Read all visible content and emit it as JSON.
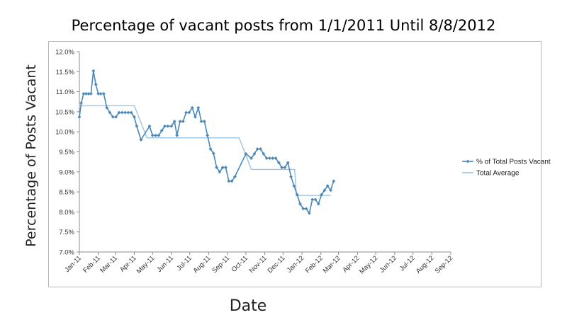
{
  "chart_data": {
    "type": "line",
    "title": "Percentage of vacant posts from 1/1/2011 Until 8/8/2012",
    "xlabel": "Date",
    "ylabel": "Percentage of Posts Vacant",
    "xlim": [
      "2011-01-01",
      "2012-09-01"
    ],
    "ylim": [
      7.0,
      12.0
    ],
    "y_ticks": [
      "7.0%",
      "7.5%",
      "8.0%",
      "8.5%",
      "9.0%",
      "9.5%",
      "10.0%",
      "10.5%",
      "11.0%",
      "11.5%",
      "12.0%"
    ],
    "x_ticks": [
      {
        "date": "2011-01-01",
        "label": "Jan-11"
      },
      {
        "date": "2011-02-01",
        "label": "Feb-11"
      },
      {
        "date": "2011-03-01",
        "label": "Mar-11"
      },
      {
        "date": "2011-04-01",
        "label": "Apr-11"
      },
      {
        "date": "2011-05-01",
        "label": "May-11"
      },
      {
        "date": "2011-06-01",
        "label": "Jun-11"
      },
      {
        "date": "2011-07-01",
        "label": "Jul-11"
      },
      {
        "date": "2011-08-01",
        "label": "Aug-11"
      },
      {
        "date": "2011-09-01",
        "label": "Sep-11"
      },
      {
        "date": "2011-10-01",
        "label": "Oct-11"
      },
      {
        "date": "2011-11-01",
        "label": "Nov-11"
      },
      {
        "date": "2011-12-01",
        "label": "Dec-11"
      },
      {
        "date": "2012-01-01",
        "label": "Jan-12"
      },
      {
        "date": "2012-02-01",
        "label": "Feb-12"
      },
      {
        "date": "2012-03-01",
        "label": "Mar-12"
      },
      {
        "date": "2012-04-01",
        "label": "Apr-12"
      },
      {
        "date": "2012-05-01",
        "label": "May-12"
      },
      {
        "date": "2012-06-01",
        "label": "Jun-12"
      },
      {
        "date": "2012-07-01",
        "label": "Jul-12"
      },
      {
        "date": "2012-08-01",
        "label": "Aug-12"
      },
      {
        "date": "2012-09-01",
        "label": "Sep-12"
      }
    ],
    "grid": false,
    "legend_position": "right",
    "series": [
      {
        "name": "% of Total Posts Vacant",
        "color": "#4a88b8",
        "markers": true,
        "points": [
          [
            "2011-01-01",
            10.37
          ],
          [
            "2011-01-04",
            10.72
          ],
          [
            "2011-01-08",
            10.95
          ],
          [
            "2011-01-12",
            10.95
          ],
          [
            "2011-01-16",
            10.95
          ],
          [
            "2011-01-20",
            10.95
          ],
          [
            "2011-01-24",
            11.52
          ],
          [
            "2011-01-28",
            11.18
          ],
          [
            "2011-02-01",
            10.95
          ],
          [
            "2011-02-05",
            10.95
          ],
          [
            "2011-02-10",
            10.95
          ],
          [
            "2011-02-15",
            10.6
          ],
          [
            "2011-02-20",
            10.48
          ],
          [
            "2011-02-25",
            10.37
          ],
          [
            "2011-03-02",
            10.37
          ],
          [
            "2011-03-07",
            10.48
          ],
          [
            "2011-03-12",
            10.48
          ],
          [
            "2011-03-17",
            10.48
          ],
          [
            "2011-03-22",
            10.48
          ],
          [
            "2011-03-27",
            10.48
          ],
          [
            "2011-04-01",
            10.37
          ],
          [
            "2011-04-05",
            10.14
          ],
          [
            "2011-04-12",
            9.8
          ],
          [
            "2011-04-26",
            10.14
          ],
          [
            "2011-05-01",
            9.91
          ],
          [
            "2011-05-06",
            9.91
          ],
          [
            "2011-05-11",
            9.91
          ],
          [
            "2011-05-16",
            10.03
          ],
          [
            "2011-05-21",
            10.14
          ],
          [
            "2011-05-26",
            10.14
          ],
          [
            "2011-06-01",
            10.14
          ],
          [
            "2011-06-06",
            10.26
          ],
          [
            "2011-06-10",
            9.91
          ],
          [
            "2011-06-15",
            10.26
          ],
          [
            "2011-06-20",
            10.26
          ],
          [
            "2011-06-25",
            10.48
          ],
          [
            "2011-06-30",
            10.48
          ],
          [
            "2011-07-05",
            10.6
          ],
          [
            "2011-07-10",
            10.37
          ],
          [
            "2011-07-15",
            10.6
          ],
          [
            "2011-07-20",
            10.26
          ],
          [
            "2011-07-25",
            10.26
          ],
          [
            "2011-07-30",
            9.91
          ],
          [
            "2011-08-04",
            9.57
          ],
          [
            "2011-08-09",
            9.46
          ],
          [
            "2011-08-14",
            9.11
          ],
          [
            "2011-08-19",
            9.0
          ],
          [
            "2011-08-24",
            9.11
          ],
          [
            "2011-08-29",
            9.11
          ],
          [
            "2011-09-03",
            8.77
          ],
          [
            "2011-09-08",
            8.77
          ],
          [
            "2011-09-13",
            8.88
          ],
          [
            "2011-10-01",
            9.45
          ],
          [
            "2011-10-10",
            9.34
          ],
          [
            "2011-10-15",
            9.45
          ],
          [
            "2011-10-20",
            9.57
          ],
          [
            "2011-10-25",
            9.57
          ],
          [
            "2011-10-30",
            9.45
          ],
          [
            "2011-11-04",
            9.34
          ],
          [
            "2011-11-09",
            9.34
          ],
          [
            "2011-11-14",
            9.34
          ],
          [
            "2011-11-19",
            9.34
          ],
          [
            "2011-11-24",
            9.23
          ],
          [
            "2011-11-29",
            9.11
          ],
          [
            "2011-12-04",
            9.11
          ],
          [
            "2011-12-09",
            9.23
          ],
          [
            "2011-12-14",
            8.88
          ],
          [
            "2011-12-19",
            8.65
          ],
          [
            "2011-12-24",
            8.43
          ],
          [
            "2011-12-29",
            8.2
          ],
          [
            "2012-01-03",
            8.08
          ],
          [
            "2012-01-08",
            8.08
          ],
          [
            "2012-01-13",
            7.97
          ],
          [
            "2012-01-18",
            8.31
          ],
          [
            "2012-01-23",
            8.31
          ],
          [
            "2012-01-28",
            8.2
          ],
          [
            "2012-02-02",
            8.43
          ],
          [
            "2012-02-07",
            8.54
          ],
          [
            "2012-02-12",
            8.65
          ],
          [
            "2012-02-17",
            8.54
          ],
          [
            "2012-02-22",
            8.77
          ]
        ]
      },
      {
        "name": "Total Average",
        "color": "#9cc3e2",
        "markers": false,
        "points": [
          [
            "2011-01-01",
            10.65
          ],
          [
            "2011-04-01",
            10.65
          ],
          [
            "2011-04-22",
            9.85
          ],
          [
            "2011-09-20",
            9.85
          ],
          [
            "2011-10-10",
            9.06
          ],
          [
            "2011-12-20",
            9.06
          ],
          [
            "2011-12-23",
            8.41
          ],
          [
            "2012-02-17",
            8.41
          ]
        ]
      }
    ]
  }
}
